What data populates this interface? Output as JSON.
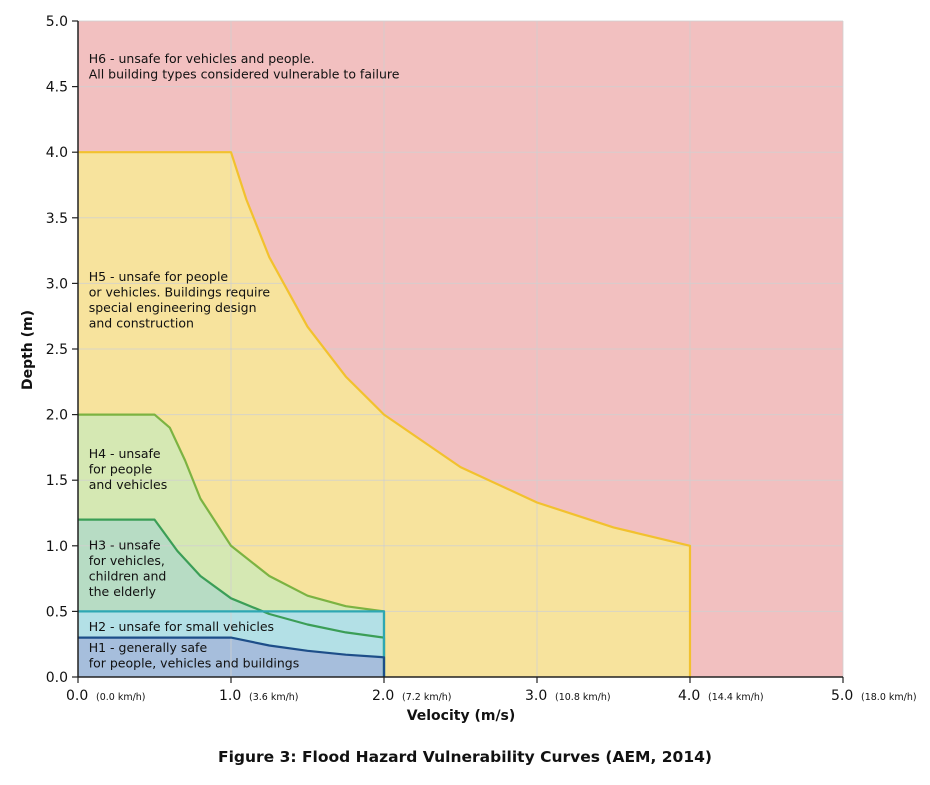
{
  "caption": "Figure 3: Flood Hazard Vulnerability Curves (AEM, 2014)",
  "chart_data": {
    "type": "area",
    "xlabel": "Velocity (m/s)",
    "ylabel": "Depth (m)",
    "xlim": [
      0,
      5
    ],
    "ylim": [
      0,
      5
    ],
    "grid": true,
    "x_ticks": [
      {
        "value": 0,
        "label": "0.0",
        "sub": "(0.0 km/h)"
      },
      {
        "value": 1,
        "label": "1.0",
        "sub": "(3.6 km/h)"
      },
      {
        "value": 2,
        "label": "2.0",
        "sub": "(7.2 km/h)"
      },
      {
        "value": 3,
        "label": "3.0",
        "sub": "(10.8 km/h)"
      },
      {
        "value": 4,
        "label": "4.0",
        "sub": "(14.4 km/h)"
      },
      {
        "value": 5,
        "label": "5.0",
        "sub": "(18.0 km/h)"
      }
    ],
    "y_ticks": [
      "0.0",
      "0.5",
      "1.0",
      "1.5",
      "2.0",
      "2.5",
      "3.0",
      "3.5",
      "4.0",
      "4.5",
      "5.0"
    ],
    "zones": [
      {
        "id": "H6",
        "label_lines": [
          "H6 - unsafe for vehicles and people.",
          "All building types considered vulnerable to failure"
        ],
        "fill": "#f2c0c0",
        "stroke": "none",
        "boundary": [
          [
            0,
            0
          ],
          [
            5,
            0
          ],
          [
            5,
            5
          ],
          [
            0,
            5
          ]
        ]
      },
      {
        "id": "H5",
        "label_lines": [
          "H5 - unsafe for people",
          "or vehicles. Buildings require",
          "special engineering design",
          "and construction"
        ],
        "fill": "#f7e39d",
        "stroke": "#f2c12e",
        "boundary": [
          [
            0,
            0
          ],
          [
            4,
            0
          ],
          [
            4,
            1
          ],
          [
            3.5,
            1.14
          ],
          [
            3,
            1.33
          ],
          [
            2.5,
            1.6
          ],
          [
            2,
            2
          ],
          [
            1.75,
            2.29
          ],
          [
            1.5,
            2.67
          ],
          [
            1.25,
            3.2
          ],
          [
            1.1,
            3.64
          ],
          [
            1,
            4
          ],
          [
            0,
            4
          ]
        ]
      },
      {
        "id": "H4",
        "label_lines": [
          "H4 - unsafe",
          "for people",
          "and vehicles"
        ],
        "fill": "#d5e8b3",
        "stroke": "#7cb342",
        "boundary": [
          [
            0,
            0
          ],
          [
            2,
            0
          ],
          [
            2,
            0.5
          ],
          [
            1.75,
            0.54
          ],
          [
            1.5,
            0.62
          ],
          [
            1.25,
            0.77
          ],
          [
            1,
            1.0
          ],
          [
            0.8,
            1.36
          ],
          [
            0.7,
            1.65
          ],
          [
            0.6,
            1.9
          ],
          [
            0.5,
            2
          ],
          [
            0,
            2
          ]
        ]
      },
      {
        "id": "H3",
        "label_lines": [
          "H3 - unsafe",
          "for vehicles,",
          "children and",
          "the elderly"
        ],
        "fill": "#b7dcc4",
        "stroke": "#3b9e57",
        "boundary": [
          [
            0,
            0
          ],
          [
            2,
            0
          ],
          [
            2,
            0.3
          ],
          [
            1.75,
            0.34
          ],
          [
            1.5,
            0.4
          ],
          [
            1.25,
            0.48
          ],
          [
            1,
            0.6
          ],
          [
            0.8,
            0.77
          ],
          [
            0.65,
            0.96
          ],
          [
            0.55,
            1.12
          ],
          [
            0.5,
            1.2
          ],
          [
            0,
            1.2
          ]
        ]
      },
      {
        "id": "H2",
        "label_lines": [
          "H2 - unsafe for small vehicles"
        ],
        "fill": "#b3e0e6",
        "stroke": "#2ea7b3",
        "boundary": [
          [
            0,
            0
          ],
          [
            2,
            0
          ],
          [
            2,
            0.5
          ],
          [
            0,
            0.5
          ]
        ]
      },
      {
        "id": "H1",
        "label_lines": [
          "H1 - generally safe",
          "for people, vehicles and buildings"
        ],
        "fill": "#a6bedc",
        "stroke": "#1d4e89",
        "boundary": [
          [
            0,
            0
          ],
          [
            2,
            0
          ],
          [
            2,
            0.15
          ],
          [
            1.75,
            0.17
          ],
          [
            1.5,
            0.2
          ],
          [
            1.25,
            0.24
          ],
          [
            1,
            0.3
          ],
          [
            0,
            0.3
          ]
        ]
      }
    ]
  }
}
